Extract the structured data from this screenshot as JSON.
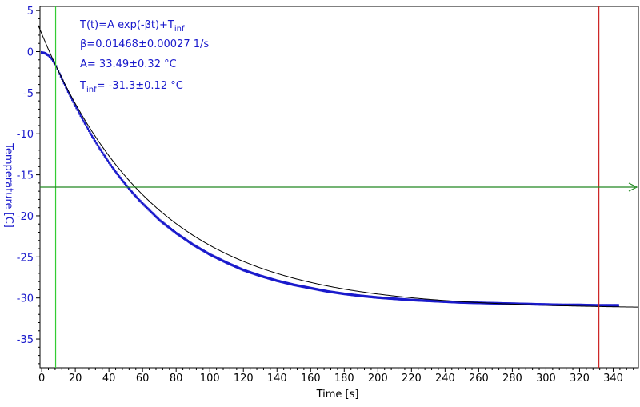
{
  "chart_data": {
    "type": "scatter",
    "xlabel": "Time [s]",
    "ylabel": "Temperature [C]",
    "xlim": [
      -1,
      355
    ],
    "ylim": [
      -38.5,
      5.5
    ],
    "x_ticks": [
      0,
      20,
      40,
      60,
      80,
      100,
      120,
      140,
      160,
      180,
      200,
      220,
      240,
      260,
      280,
      300,
      320,
      340
    ],
    "y_ticks": [
      5,
      0,
      -5,
      -10,
      -15,
      -20,
      -25,
      -30,
      -35
    ],
    "grid": false,
    "legend": "none",
    "fit": {
      "model": "T(t)=A exp(-βt)+T_inf",
      "A": 33.49,
      "beta": 0.01468,
      "T_inf": -31.3
    },
    "annotations": {
      "model_main": "T(t)=A exp(-βt)+T",
      "model_sub": "inf",
      "beta": "β=0.01468±0.00027 1/s",
      "a": "A= 33.49±0.32 °C",
      "tinf_main": "T",
      "tinf_sub": "inf",
      "tinf_value": "= -31.3±0.12 °C"
    },
    "markers": {
      "cursor_start_x": 8.3,
      "cursor_end_x": 331.5,
      "horizontal_level_y": -16.5
    },
    "series": [
      {
        "points": [
          [
            0,
            -0.1
          ],
          [
            2,
            -0.2
          ],
          [
            4,
            -0.45
          ],
          [
            6,
            -0.9
          ],
          [
            8,
            -1.5
          ],
          [
            10,
            -2.4
          ],
          [
            12,
            -3.3
          ],
          [
            15,
            -4.6
          ],
          [
            20,
            -6.6
          ],
          [
            25,
            -8.5
          ],
          [
            30,
            -10.3
          ],
          [
            35,
            -11.95
          ],
          [
            40,
            -13.5
          ],
          [
            45,
            -14.9
          ],
          [
            50,
            -16.2
          ],
          [
            55,
            -17.4
          ],
          [
            60,
            -18.5
          ],
          [
            70,
            -20.5
          ],
          [
            80,
            -22.1
          ],
          [
            90,
            -23.5
          ],
          [
            100,
            -24.7
          ],
          [
            110,
            -25.7
          ],
          [
            120,
            -26.6
          ],
          [
            130,
            -27.3
          ],
          [
            140,
            -27.9
          ],
          [
            150,
            -28.4
          ],
          [
            160,
            -28.8
          ],
          [
            170,
            -29.2
          ],
          [
            180,
            -29.5
          ],
          [
            190,
            -29.75
          ],
          [
            200,
            -29.95
          ],
          [
            210,
            -30.1
          ],
          [
            220,
            -30.25
          ],
          [
            230,
            -30.35
          ],
          [
            240,
            -30.45
          ],
          [
            250,
            -30.55
          ],
          [
            260,
            -30.6
          ],
          [
            270,
            -30.65
          ],
          [
            280,
            -30.7
          ],
          [
            290,
            -30.75
          ],
          [
            300,
            -30.8
          ],
          [
            310,
            -30.85
          ],
          [
            320,
            -30.85
          ],
          [
            330,
            -30.9
          ],
          [
            343,
            -30.9
          ]
        ],
        "color": "#1a1acc"
      }
    ],
    "colors": {
      "axis": "#000000",
      "text": "#1a1acc",
      "fit": "#000000",
      "start_cursor": "#33cc33",
      "end_cursor": "#cc2222",
      "level_line": "#228822"
    }
  }
}
